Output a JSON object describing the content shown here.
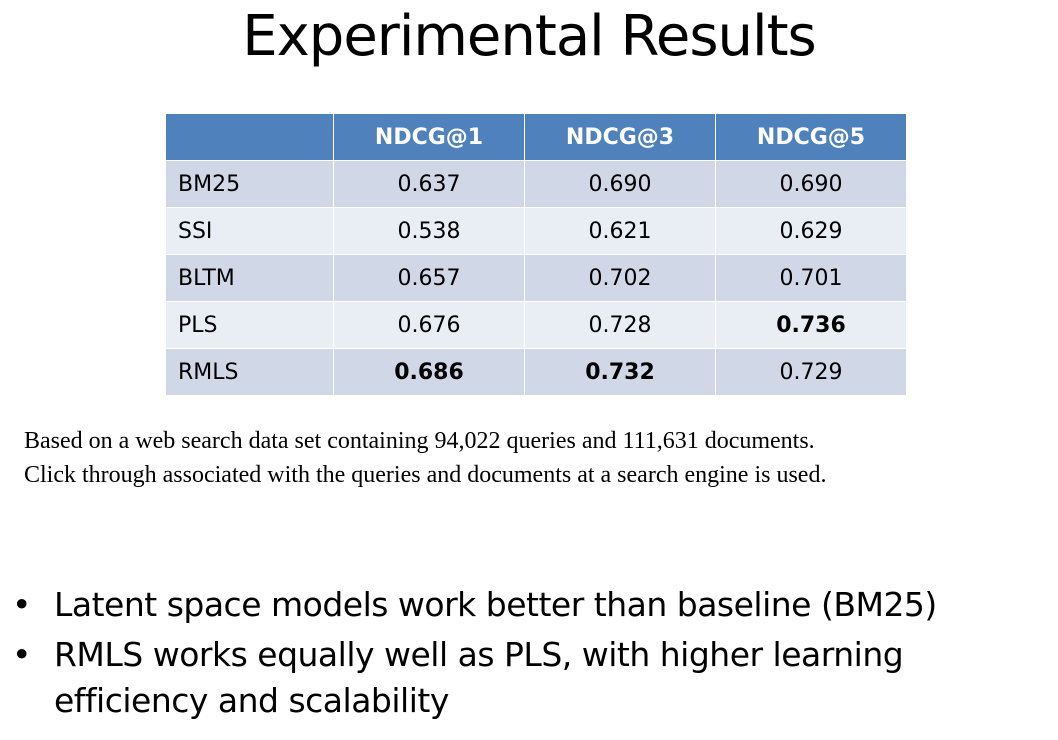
{
  "title": "Experimental Results",
  "table": {
    "headers": [
      "",
      "NDCG@1",
      "NDCG@3",
      "NDCG@5"
    ],
    "rows": [
      {
        "model": "BM25",
        "values": [
          "0.637",
          "0.690",
          "0.690"
        ],
        "bold": [
          false,
          false,
          false
        ]
      },
      {
        "model": "SSI",
        "values": [
          "0.538",
          "0.621",
          "0.629"
        ],
        "bold": [
          false,
          false,
          false
        ]
      },
      {
        "model": "BLTM",
        "values": [
          "0.657",
          "0.702",
          "0.701"
        ],
        "bold": [
          false,
          false,
          false
        ]
      },
      {
        "model": "PLS",
        "values": [
          "0.676",
          "0.728",
          "0.736"
        ],
        "bold": [
          false,
          false,
          true
        ]
      },
      {
        "model": "RMLS",
        "values": [
          "0.686",
          "0.732",
          "0.729"
        ],
        "bold": [
          true,
          true,
          false
        ]
      }
    ]
  },
  "caption": {
    "line1": "Based on a web search data set containing 94,022 queries and 111,631 documents.",
    "line2": "Click through associated with the queries and documents at a search engine is used."
  },
  "bullets": [
    "Latent space models work better than baseline (BM25)",
    "RMLS works equally well as PLS, with higher learning efficiency and scalability"
  ],
  "colors": {
    "header_bg": "#4f81bd",
    "row_odd_bg": "#d0d8e8",
    "row_even_bg": "#e9edf4"
  }
}
